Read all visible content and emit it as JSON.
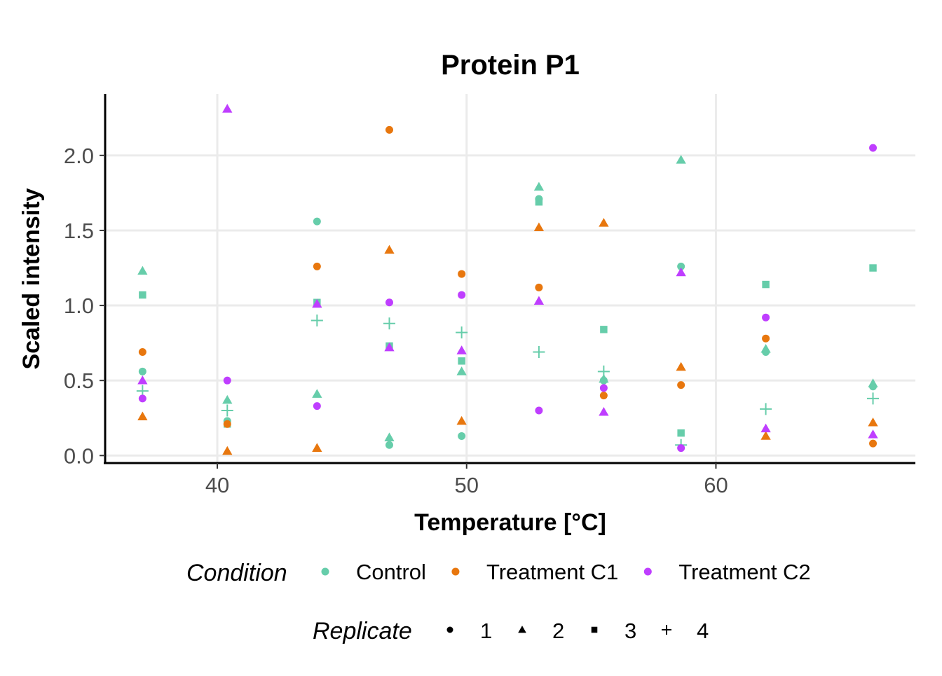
{
  "chart_data": {
    "type": "scatter",
    "title": "Protein P1",
    "xlabel": "Temperature [°C]",
    "ylabel": "Scaled intensity",
    "xlim": [
      35.5,
      68
    ],
    "ylim": [
      -0.05,
      2.41
    ],
    "x_ticks": [
      40,
      50,
      60
    ],
    "x_tick_labels": [
      "40",
      "50",
      "60"
    ],
    "y_ticks": [
      0,
      0.5,
      1,
      1.5,
      2
    ],
    "y_tick_labels": [
      "0.0",
      "0.5",
      "1.0",
      "1.5",
      "2.0"
    ],
    "grid": true,
    "legend_position": "bottom",
    "condition_legend": {
      "title": "Condition",
      "items": [
        {
          "name": "Control",
          "color": "#66CDAA"
        },
        {
          "name": "Treatment C1",
          "color": "#E8770E"
        },
        {
          "name": "Treatment C2",
          "color": "#BF3EFF"
        }
      ]
    },
    "replicate_legend": {
      "title": "Replicate",
      "items": [
        {
          "name": "1",
          "shape": "circle"
        },
        {
          "name": "2",
          "shape": "triangle"
        },
        {
          "name": "3",
          "shape": "square"
        },
        {
          "name": "4",
          "shape": "plus"
        }
      ]
    },
    "temperatures": [
      37,
      40.4,
      44,
      46.9,
      49.8,
      52.9,
      55.5,
      58.6,
      62,
      66.3
    ],
    "series": [
      {
        "condition": "Control",
        "replicate": "1",
        "y": [
          0.56,
          0.23,
          1.56,
          0.07,
          0.13,
          1.71,
          0.5,
          1.26,
          0.69,
          0.46
        ]
      },
      {
        "condition": "Control",
        "replicate": "2",
        "y": [
          1.23,
          0.37,
          0.41,
          0.12,
          0.56,
          1.79,
          0.51,
          1.97,
          0.71,
          0.48
        ]
      },
      {
        "condition": "Control",
        "replicate": "3",
        "y": [
          1.07,
          0.21,
          1.02,
          0.73,
          0.63,
          1.69,
          0.84,
          0.15,
          1.14,
          1.25
        ]
      },
      {
        "condition": "Control",
        "replicate": "4",
        "y": [
          0.43,
          0.3,
          0.9,
          0.88,
          0.82,
          0.69,
          0.56,
          0.07,
          0.31,
          0.38
        ]
      },
      {
        "condition": "Treatment C1",
        "replicate": "1",
        "y": [
          0.69,
          0.21,
          1.26,
          2.17,
          1.21,
          1.12,
          0.4,
          0.47,
          0.78,
          0.08
        ]
      },
      {
        "condition": "Treatment C1",
        "replicate": "2",
        "y": [
          0.26,
          0.03,
          0.05,
          1.37,
          0.23,
          1.52,
          1.55,
          0.59,
          0.13,
          0.22
        ]
      },
      {
        "condition": "Treatment C2",
        "replicate": "1",
        "y": [
          0.38,
          0.5,
          0.33,
          1.02,
          1.07,
          0.3,
          0.45,
          0.05,
          0.92,
          2.05
        ]
      },
      {
        "condition": "Treatment C2",
        "replicate": "2",
        "y": [
          0.5,
          2.31,
          1.01,
          0.72,
          0.7,
          1.03,
          0.29,
          1.22,
          0.18,
          0.14
        ]
      }
    ]
  }
}
